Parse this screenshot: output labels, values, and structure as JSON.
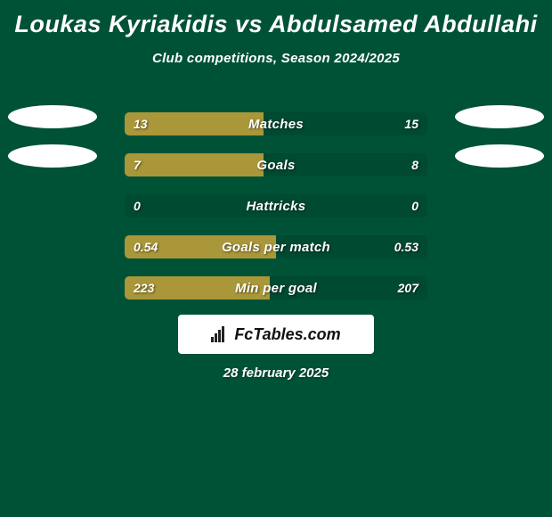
{
  "title": "Loukas Kyriakidis vs Abdulsamed Abdullahi",
  "subtitle": "Club competitions, Season 2024/2025",
  "date": "28 february 2025",
  "logo_text": "FcTables.com",
  "colors": {
    "background": "#005236",
    "fill": "#aa9739",
    "track": "#004a31",
    "avatar": "#ffffff",
    "text": "#ffffff"
  },
  "rows": [
    {
      "label": "Matches",
      "left": "13",
      "right": "15",
      "fill_pct": 46
    },
    {
      "label": "Goals",
      "left": "7",
      "right": "8",
      "fill_pct": 46
    },
    {
      "label": "Hattricks",
      "left": "0",
      "right": "0",
      "fill_pct": 0
    },
    {
      "label": "Goals per match",
      "left": "0.54",
      "right": "0.53",
      "fill_pct": 50
    },
    {
      "label": "Min per goal",
      "left": "223",
      "right": "207",
      "fill_pct": 48
    }
  ]
}
